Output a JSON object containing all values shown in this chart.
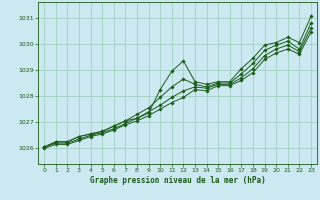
{
  "title": "Graphe pression niveau de la mer (hPa)",
  "bg_color": "#cce8f0",
  "grid_color": "#99ccbb",
  "line_color": "#1a5c1a",
  "marker_color": "#1a5c1a",
  "xlim": [
    -0.5,
    23.5
  ],
  "ylim": [
    1025.4,
    1031.6
  ],
  "yticks": [
    1026,
    1027,
    1028,
    1029,
    1030,
    1031
  ],
  "xticks": [
    0,
    1,
    2,
    3,
    4,
    5,
    6,
    7,
    8,
    9,
    10,
    11,
    12,
    13,
    14,
    15,
    16,
    17,
    18,
    19,
    20,
    21,
    22,
    23
  ],
  "series": [
    [
      1026.05,
      1026.25,
      1026.25,
      1026.45,
      1026.55,
      1026.65,
      1026.85,
      1027.05,
      1027.15,
      1027.35,
      1028.25,
      1028.95,
      1029.35,
      1028.55,
      1028.45,
      1028.55,
      1028.55,
      1029.05,
      1029.45,
      1029.95,
      1030.05,
      1030.25,
      1030.05,
      1031.05
    ],
    [
      1026.05,
      1026.25,
      1026.25,
      1026.45,
      1026.55,
      1026.65,
      1026.85,
      1027.05,
      1027.3,
      1027.55,
      1027.95,
      1028.35,
      1028.65,
      1028.45,
      1028.35,
      1028.5,
      1028.5,
      1028.85,
      1029.25,
      1029.75,
      1029.95,
      1030.1,
      1029.8,
      1030.8
    ],
    [
      1026.05,
      1026.2,
      1026.2,
      1026.35,
      1026.5,
      1026.6,
      1026.75,
      1026.95,
      1027.15,
      1027.4,
      1027.65,
      1027.95,
      1028.2,
      1028.35,
      1028.3,
      1028.45,
      1028.45,
      1028.7,
      1029.05,
      1029.55,
      1029.8,
      1029.95,
      1029.7,
      1030.6
    ],
    [
      1026.0,
      1026.15,
      1026.15,
      1026.3,
      1026.45,
      1026.55,
      1026.7,
      1026.9,
      1027.05,
      1027.25,
      1027.5,
      1027.75,
      1027.95,
      1028.25,
      1028.2,
      1028.4,
      1028.4,
      1028.6,
      1028.9,
      1029.4,
      1029.65,
      1029.8,
      1029.6,
      1030.45
    ]
  ]
}
